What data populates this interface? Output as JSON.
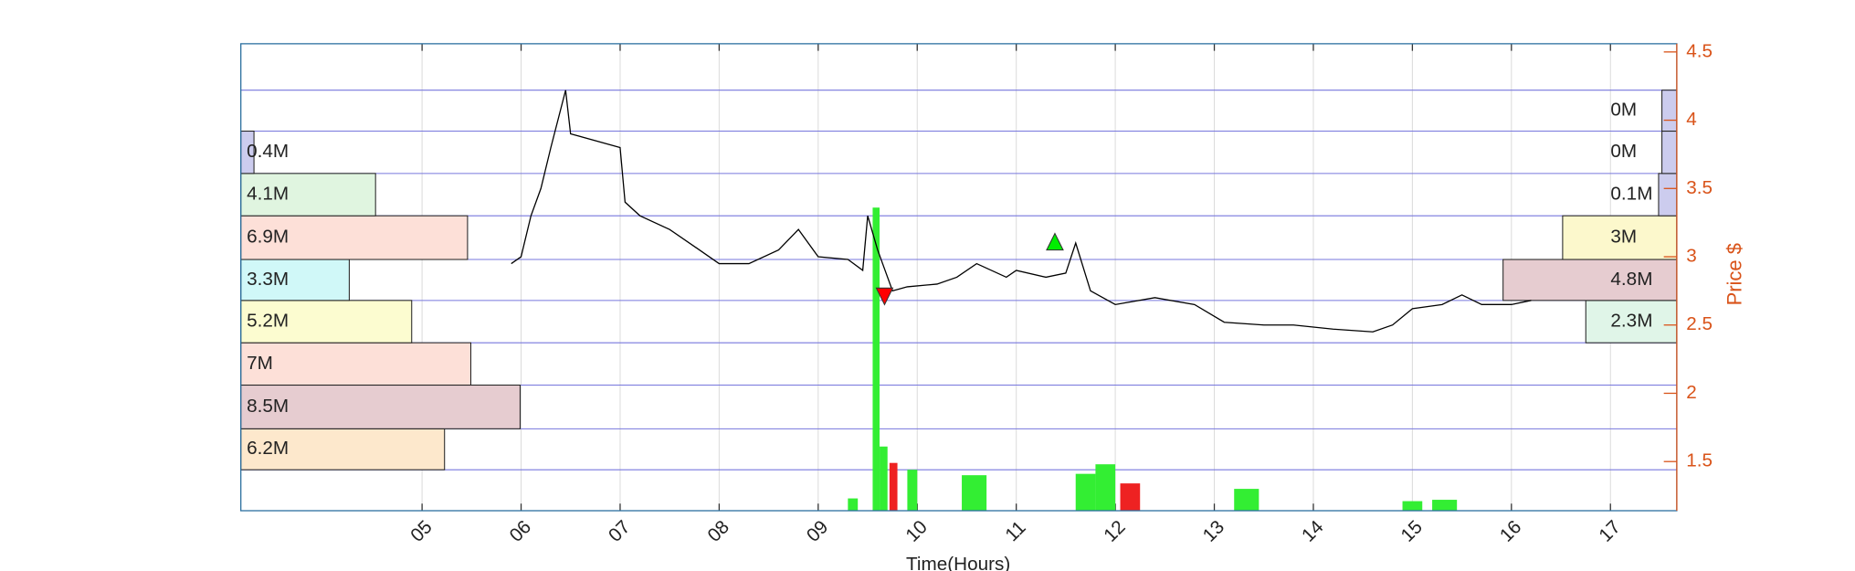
{
  "chart_data": {
    "type": "line",
    "x_label": "Time(Hours)",
    "y_label": "Price $",
    "y_axis_side": "right",
    "grid": true,
    "color": "#000000",
    "axis_color": "#d95319",
    "grid_color": "#7777dd",
    "xlim": [
      3.17,
      17.67
    ],
    "ylim": [
      1.14,
      4.56
    ],
    "xticks": [
      {
        "value": 5,
        "label": "05"
      },
      {
        "value": 6,
        "label": "06"
      },
      {
        "value": 7,
        "label": "07"
      },
      {
        "value": 8,
        "label": "08"
      },
      {
        "value": 9,
        "label": "09"
      },
      10,
      11,
      12,
      13,
      14,
      15,
      16,
      17
    ],
    "yticks": [
      1.5,
      2,
      2.5,
      3,
      3.5,
      4,
      4.5
    ],
    "x": [
      5.9,
      6.0,
      6.1,
      6.2,
      6.3,
      6.45,
      6.5,
      7.0,
      7.05,
      7.2,
      7.5,
      7.8,
      8.0,
      8.3,
      8.6,
      8.8,
      9.0,
      9.3,
      9.45,
      9.5,
      9.6,
      9.75,
      9.9,
      10.2,
      10.4,
      10.6,
      10.9,
      11.0,
      11.3,
      11.5,
      11.6,
      11.75,
      12.0,
      12.4,
      12.8,
      13.1,
      13.5,
      13.8,
      14.2,
      14.6,
      14.8,
      15.0,
      15.3,
      15.5,
      15.7,
      16.0,
      16.2
    ],
    "values": [
      2.95,
      3.0,
      3.3,
      3.5,
      3.8,
      4.22,
      3.9,
      3.8,
      3.4,
      3.3,
      3.2,
      3.05,
      2.95,
      2.95,
      3.05,
      3.2,
      3.0,
      2.98,
      2.9,
      3.3,
      3.05,
      2.75,
      2.78,
      2.8,
      2.85,
      2.95,
      2.85,
      2.9,
      2.85,
      2.88,
      3.1,
      2.75,
      2.65,
      2.7,
      2.65,
      2.52,
      2.5,
      2.5,
      2.47,
      2.45,
      2.5,
      2.62,
      2.65,
      2.72,
      2.65,
      2.65,
      2.68
    ],
    "signals": [
      {
        "x": 9.67,
        "value": 2.71,
        "color": "#ff0000",
        "shape": "down"
      },
      {
        "x": 11.39,
        "value": 3.11,
        "color": "#00ee00",
        "shape": "up"
      }
    ],
    "volume": {
      "x": [
        9.3,
        9.55,
        9.62,
        9.72,
        9.9,
        10.45,
        11.6,
        11.8,
        12.05,
        13.2,
        14.9,
        15.2
      ],
      "x_end": [
        9.4,
        9.62,
        9.7,
        9.8,
        10.0,
        10.7,
        11.8,
        12.0,
        12.25,
        13.45,
        15.1,
        15.45
      ],
      "values": [
        1.23,
        3.36,
        1.61,
        1.49,
        1.44,
        1.4,
        1.41,
        1.48,
        1.34,
        1.3,
        1.21,
        1.22
      ],
      "colors": [
        "#33ee33",
        "#33ee33",
        "#33ee33",
        "#ee2222",
        "#33ee33",
        "#33ee33",
        "#33ee33",
        "#33ee33",
        "#ee2222",
        "#33ee33",
        "#33ee33",
        "#33ee33"
      ]
    },
    "volume_profiles": [
      {
        "side": "left",
        "bins": [
          1.44,
          1.74,
          2.06,
          2.37,
          2.68,
          2.98,
          3.3,
          3.61,
          3.92
        ],
        "values": [
          6.2,
          8.5,
          7,
          5.2,
          3.3,
          6.9,
          4.1,
          0.4
        ],
        "value_labels": [
          "6.2M",
          "8.5M",
          "7M",
          "5.2M",
          "3.3M",
          "6.9M",
          "4.1M",
          "0.4M"
        ],
        "colors": [
          "#fde8cc",
          "#e6ccd0",
          "#fde0d8",
          "#fcfcd0",
          "#d0f8f8",
          "#fde0d8",
          "#e0f5e0",
          "#ccccee"
        ]
      },
      {
        "side": "right",
        "bins": [
          2.37,
          2.68,
          2.98,
          3.3,
          3.61,
          3.92,
          4.22
        ],
        "values": [
          2.3,
          4.8,
          3,
          0.1,
          0,
          0
        ],
        "value_labels": [
          "2.3M",
          "4.8M",
          "3M",
          "0.1M",
          "0M",
          "0M"
        ],
        "colors": [
          "#e0f5e8",
          "#e6ccd0",
          "#fcf8cc",
          "#ccccee",
          "#ccccee",
          "#ccccee"
        ]
      }
    ]
  }
}
